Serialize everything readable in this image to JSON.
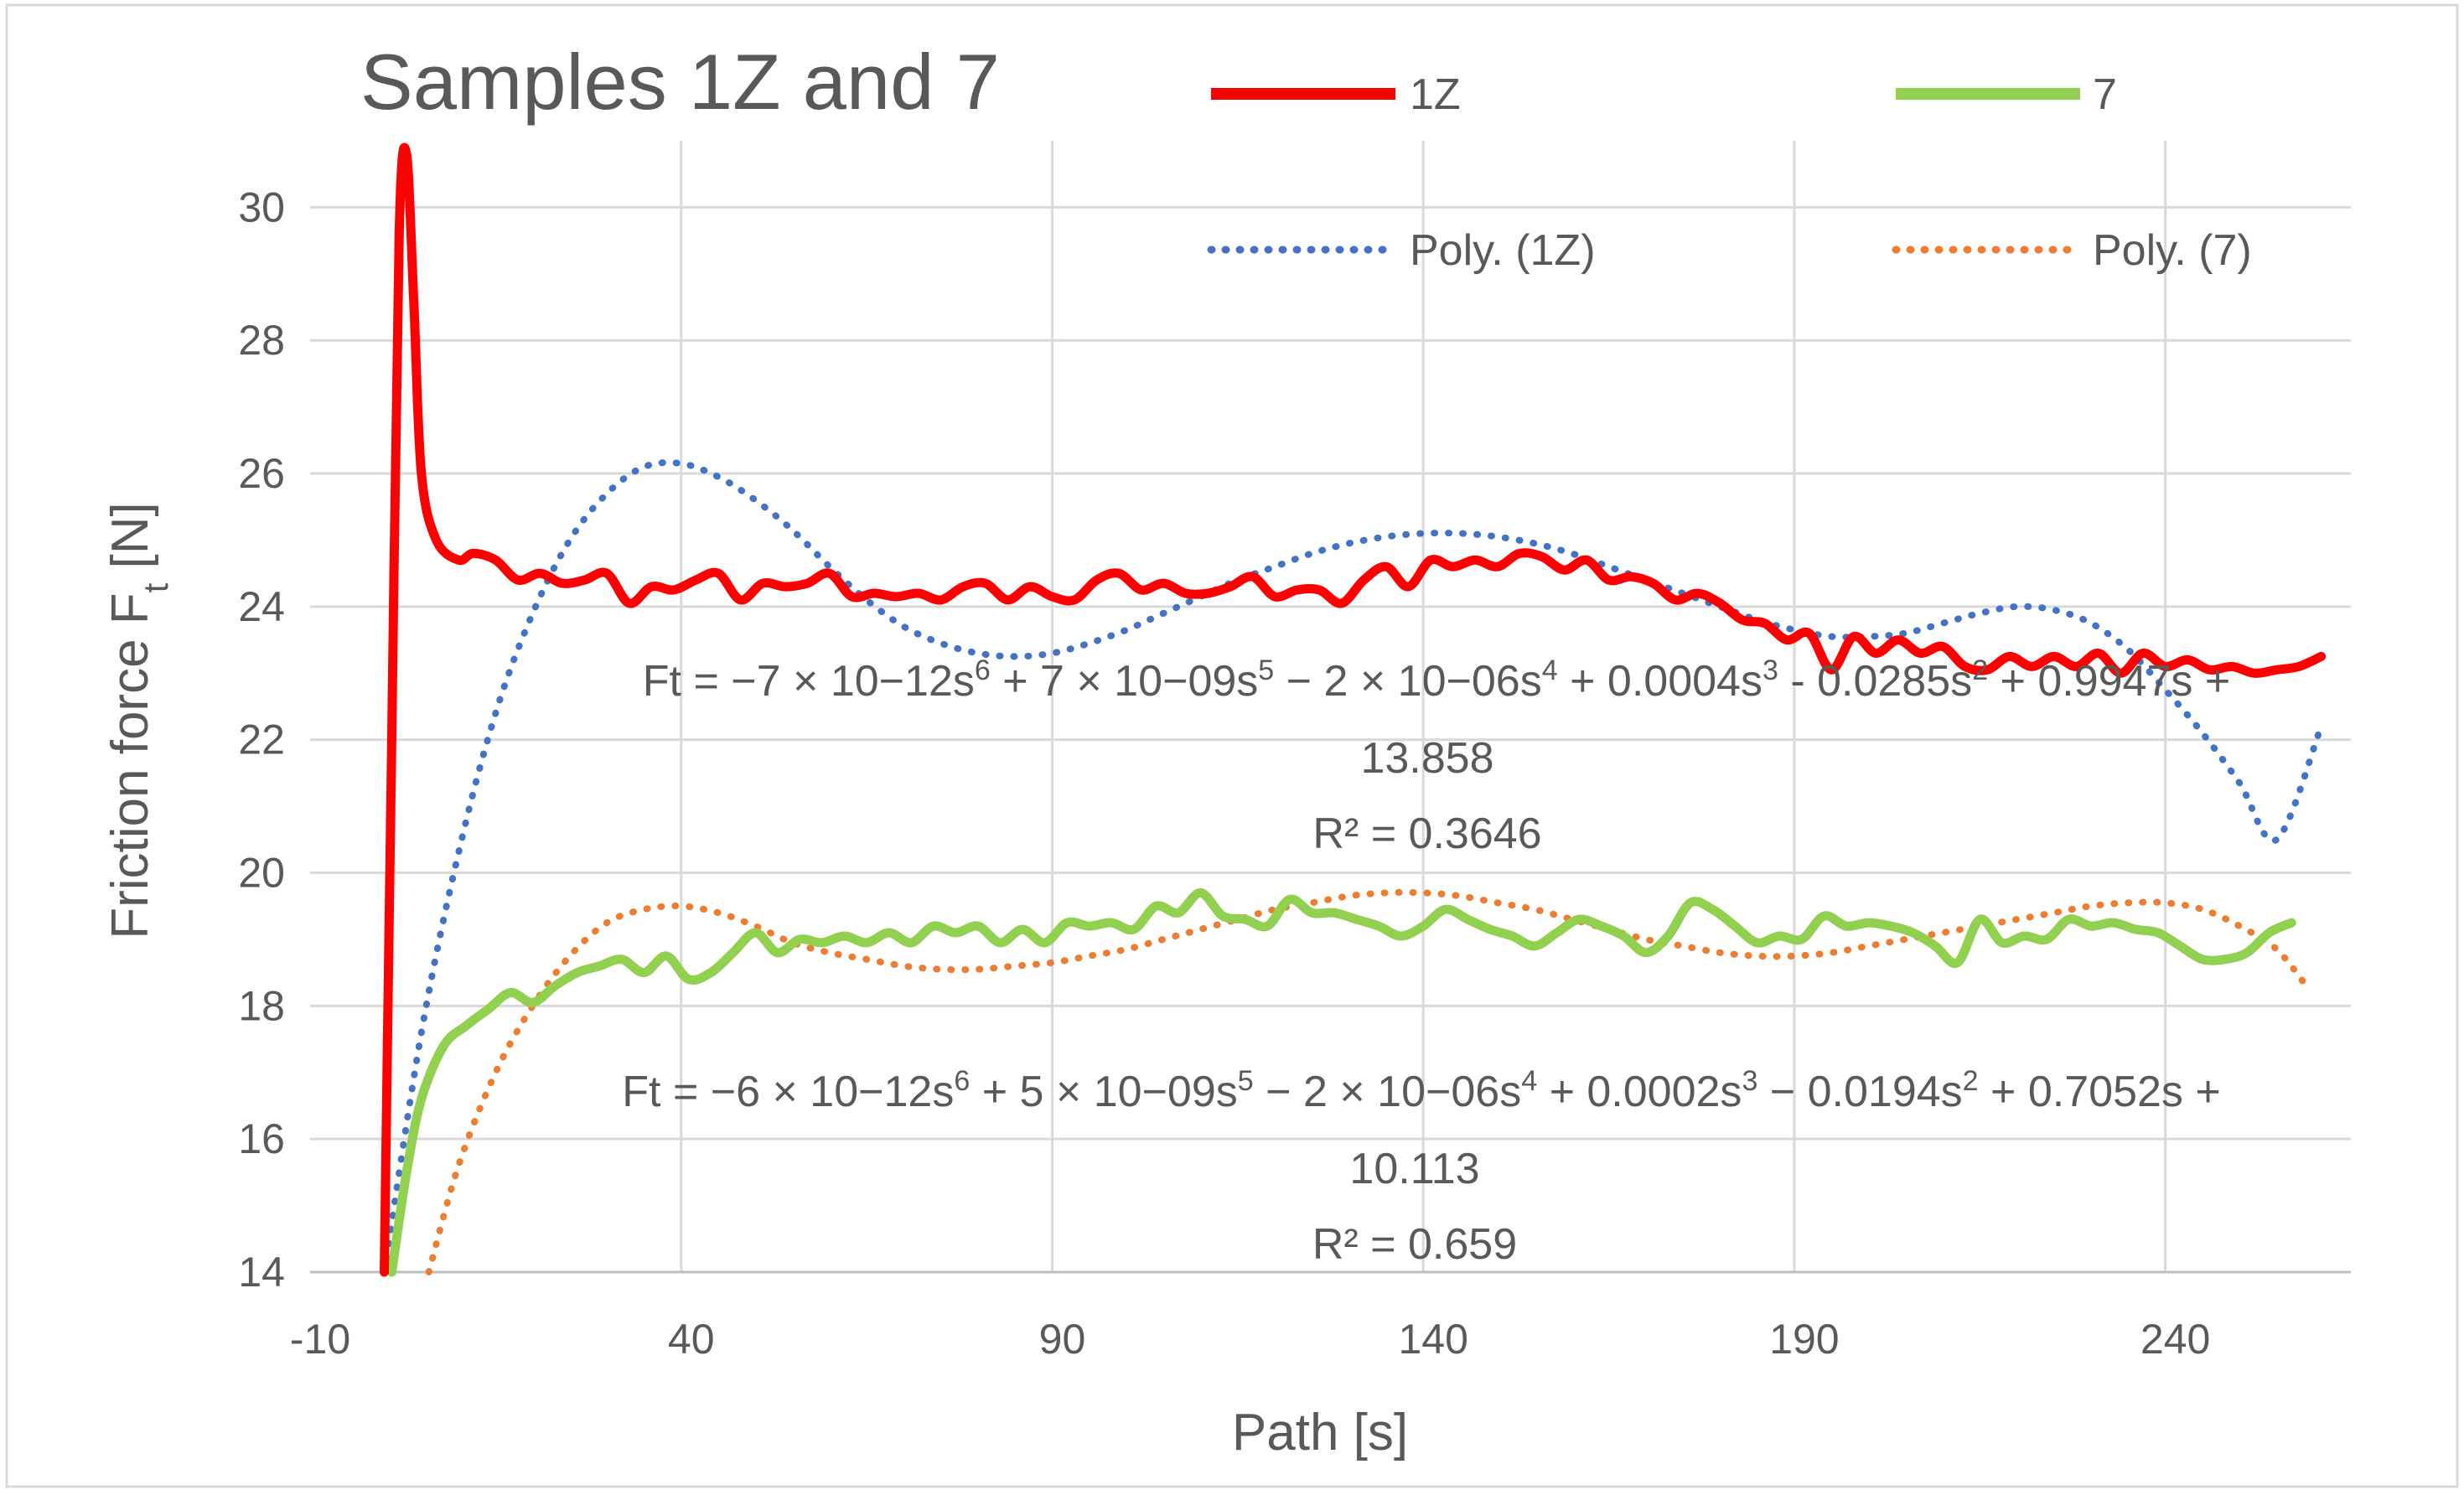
{
  "chart_data": {
    "type": "line",
    "title": "Samples 1Z and 7",
    "xlabel": "Path [s]",
    "ylabel": {
      "main": "Friction force F",
      "subscript": "t",
      "unit": " [N]"
    },
    "xlim": [
      -10,
      265
    ],
    "ylim": [
      14,
      31
    ],
    "x_ticks": [
      -10,
      40,
      90,
      140,
      190,
      240
    ],
    "y_ticks": [
      14,
      16,
      18,
      20,
      22,
      24,
      26,
      28,
      30
    ],
    "grid": true,
    "legend": {
      "position": "top-right",
      "entries": [
        "1Z",
        "7",
        "Poly. (1Z)",
        "Poly. (7)"
      ]
    },
    "series": [
      {
        "name": "1Z",
        "style": "solid",
        "color": "#ff0000",
        "x": [
          0,
          1,
          2,
          3,
          4,
          5,
          7,
          10,
          12,
          15,
          18,
          21,
          24,
          27,
          30,
          33,
          36,
          39,
          42,
          45,
          48,
          51,
          54,
          57,
          60,
          63,
          66,
          69,
          72,
          75,
          78,
          81,
          84,
          87,
          90,
          93,
          96,
          99,
          102,
          105,
          108,
          111,
          114,
          117,
          120,
          123,
          126,
          129,
          132,
          135,
          138,
          141,
          144,
          147,
          150,
          153,
          156,
          159,
          162,
          165,
          168,
          171,
          174,
          177,
          180,
          183,
          186,
          189,
          192,
          195,
          198,
          201,
          204,
          207,
          210,
          213,
          216,
          219,
          222,
          225,
          228,
          231,
          234,
          237,
          240,
          243,
          246,
          249,
          252,
          255,
          258,
          261
        ],
        "y": [
          14.0,
          22.0,
          29.6,
          30.8,
          28.5,
          26.0,
          25.0,
          24.7,
          24.8,
          24.7,
          24.4,
          24.5,
          24.35,
          24.4,
          24.5,
          24.05,
          24.3,
          24.25,
          24.4,
          24.5,
          24.1,
          24.35,
          24.3,
          24.35,
          24.5,
          24.15,
          24.2,
          24.15,
          24.2,
          24.1,
          24.3,
          24.35,
          24.1,
          24.3,
          24.15,
          24.1,
          24.4,
          24.5,
          24.25,
          24.35,
          24.2,
          24.2,
          24.3,
          24.45,
          24.15,
          24.25,
          24.25,
          24.05,
          24.4,
          24.6,
          24.3,
          24.7,
          24.6,
          24.7,
          24.6,
          24.8,
          24.75,
          24.55,
          24.7,
          24.4,
          24.45,
          24.35,
          24.1,
          24.2,
          24.05,
          23.8,
          23.75,
          23.5,
          23.6,
          23.05,
          23.55,
          23.3,
          23.5,
          23.3,
          23.4,
          23.1,
          23.05,
          23.25,
          23.1,
          23.25,
          23.1,
          23.3,
          23.0,
          23.3,
          23.1,
          23.2,
          23.05,
          23.1,
          23.0,
          23.05,
          23.1,
          23.25
        ]
      },
      {
        "name": "7",
        "style": "solid",
        "color": "#92d050",
        "x": [
          1,
          3,
          5,
          8,
          11,
          14,
          17,
          20,
          23,
          26,
          29,
          32,
          35,
          38,
          41,
          44,
          47,
          50,
          53,
          56,
          59,
          62,
          65,
          68,
          71,
          74,
          77,
          80,
          83,
          86,
          89,
          92,
          95,
          98,
          101,
          104,
          107,
          110,
          113,
          116,
          119,
          122,
          125,
          128,
          131,
          134,
          137,
          140,
          143,
          146,
          149,
          152,
          155,
          158,
          161,
          164,
          167,
          170,
          173,
          176,
          179,
          182,
          185,
          188,
          191,
          194,
          197,
          200,
          203,
          206,
          209,
          212,
          215,
          218,
          221,
          224,
          227,
          230,
          233,
          236,
          239,
          242,
          245,
          248,
          251,
          254,
          257
        ],
        "y": [
          14.0,
          15.5,
          16.6,
          17.4,
          17.7,
          17.95,
          18.2,
          18.05,
          18.3,
          18.5,
          18.6,
          18.7,
          18.5,
          18.75,
          18.4,
          18.5,
          18.8,
          19.1,
          18.8,
          19.0,
          18.95,
          19.05,
          18.95,
          19.1,
          18.95,
          19.2,
          19.1,
          19.2,
          18.95,
          19.15,
          18.95,
          19.25,
          19.2,
          19.25,
          19.15,
          19.5,
          19.4,
          19.7,
          19.35,
          19.3,
          19.2,
          19.6,
          19.4,
          19.4,
          19.3,
          19.2,
          19.05,
          19.2,
          19.45,
          19.3,
          19.15,
          19.05,
          18.9,
          19.1,
          19.3,
          19.2,
          19.05,
          18.8,
          19.05,
          19.55,
          19.45,
          19.2,
          18.95,
          19.05,
          19.0,
          19.35,
          19.2,
          19.25,
          19.2,
          19.1,
          18.9,
          18.65,
          19.3,
          18.95,
          19.05,
          19.0,
          19.3,
          19.2,
          19.25,
          19.15,
          19.1,
          18.9,
          18.7,
          18.7,
          18.8,
          19.1,
          19.25
        ]
      },
      {
        "name": "Poly. (1Z)",
        "style": "dotted",
        "color": "#4472c4",
        "equation": {
          "line1_parts": [
            "Ft = −7 × 10−12s",
            "6",
            " + 7 × 10−09s",
            "5",
            " − 2 × 10−06s",
            "4",
            " + 0.0004s",
            "3",
            " - 0.0285s",
            "2",
            " + 0.9947s +"
          ],
          "line2": "13.858",
          "r2": "R² = 0.3646"
        },
        "coefficients": [
          -7e-12,
          7e-09,
          -2e-06,
          0.0004,
          -0.0285,
          0.9947,
          13.858
        ]
      },
      {
        "name": "Poly. (7)",
        "style": "dotted",
        "color": "#ed7d31",
        "equation": {
          "line1_parts": [
            "Ft = −6 × 10−12s",
            "6",
            " + 5 × 10−09s",
            "5",
            " − 2 × 10−06s",
            "4",
            " + 0.0002s",
            "3",
            " − 0.0194s",
            "2",
            " + 0.7052s +"
          ],
          "line2": "10.113",
          "r2": "R² = 0.659"
        },
        "coefficients": [
          -6e-12,
          5e-09,
          -2e-06,
          0.0002,
          -0.0194,
          0.7052,
          10.113
        ]
      }
    ],
    "trend_curves": [
      {
        "name": "Poly. (1Z)",
        "x": [
          0,
          5,
          10,
          15,
          20,
          25,
          30,
          35,
          40,
          45,
          50,
          55,
          60,
          65,
          70,
          75,
          80,
          85,
          90,
          95,
          100,
          105,
          110,
          115,
          120,
          125,
          130,
          135,
          140,
          145,
          150,
          155,
          160,
          165,
          170,
          175,
          180,
          185,
          190,
          195,
          200,
          205,
          210,
          215,
          220,
          225,
          230,
          235,
          240,
          245,
          250,
          255,
          261
        ],
        "y": [
          14.0,
          17.6,
          20.3,
          22.4,
          23.9,
          25.0,
          25.7,
          26.1,
          26.15,
          25.95,
          25.6,
          25.15,
          24.6,
          24.1,
          23.7,
          23.45,
          23.3,
          23.25,
          23.3,
          23.45,
          23.65,
          23.9,
          24.15,
          24.4,
          24.6,
          24.8,
          24.95,
          25.05,
          25.1,
          25.1,
          25.05,
          24.95,
          24.8,
          24.6,
          24.4,
          24.2,
          24.0,
          23.8,
          23.65,
          23.55,
          23.55,
          23.6,
          23.75,
          23.9,
          24.0,
          23.95,
          23.75,
          23.35,
          22.75,
          22.1,
          21.35,
          20.5,
          22.2
        ]
      },
      {
        "name": "Poly. (7)",
        "x": [
          6,
          10,
          15,
          20,
          25,
          30,
          35,
          40,
          45,
          50,
          55,
          60,
          65,
          70,
          75,
          80,
          85,
          90,
          95,
          100,
          105,
          110,
          115,
          120,
          125,
          130,
          135,
          140,
          145,
          150,
          155,
          160,
          165,
          170,
          175,
          180,
          185,
          190,
          195,
          200,
          205,
          210,
          215,
          220,
          225,
          230,
          235,
          240,
          245,
          250,
          255,
          259
        ],
        "y": [
          14.0,
          15.6,
          17.0,
          18.0,
          18.75,
          19.25,
          19.45,
          19.5,
          19.4,
          19.2,
          18.95,
          18.8,
          18.7,
          18.6,
          18.55,
          18.55,
          18.6,
          18.65,
          18.75,
          18.85,
          19.0,
          19.15,
          19.3,
          19.45,
          19.55,
          19.65,
          19.7,
          19.7,
          19.65,
          19.55,
          19.45,
          19.3,
          19.15,
          19.0,
          18.9,
          18.8,
          18.75,
          18.75,
          18.8,
          18.9,
          19.0,
          19.1,
          19.2,
          19.3,
          19.4,
          19.5,
          19.55,
          19.55,
          19.45,
          19.2,
          18.85,
          18.3
        ]
      }
    ]
  }
}
